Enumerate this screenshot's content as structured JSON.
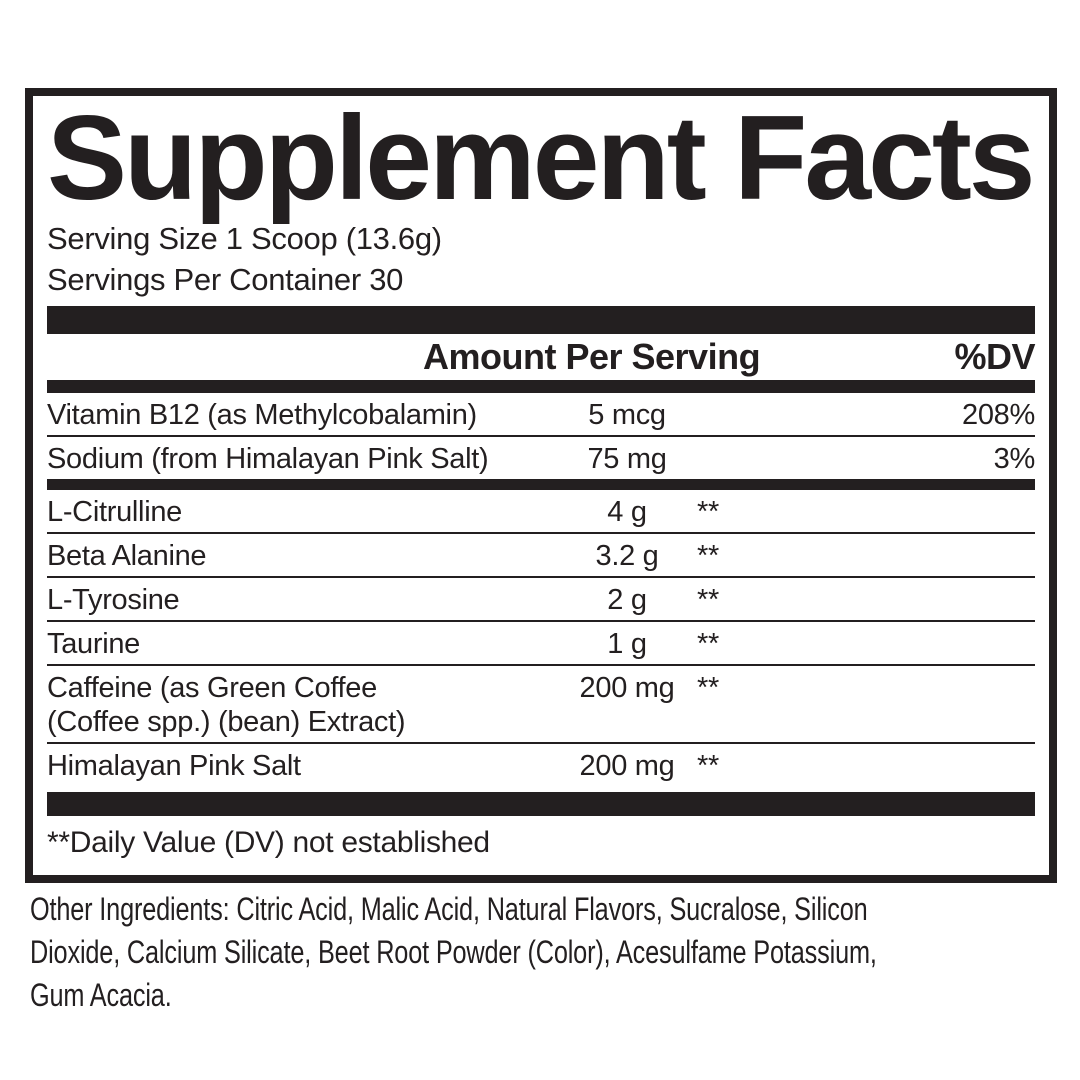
{
  "panel": {
    "title": "Supplement Facts",
    "serving_size": "Serving Size 1 Scoop (13.6g)",
    "servings_per_container": "Servings Per Container 30",
    "column_headers": {
      "amount": "Amount Per Serving",
      "dv": "%DV"
    },
    "daily_value_rows": [
      {
        "name": "Vitamin B12 (as Methylcobalamin)",
        "amount": "5 mcg",
        "asterisks": "",
        "dv": "208%"
      },
      {
        "name": "Sodium (from Himalayan Pink Salt)",
        "amount": "75 mg",
        "asterisks": "",
        "dv": "3%"
      }
    ],
    "blend_rows": [
      {
        "name": "L-Citrulline",
        "amount": "4 g",
        "asterisks": "**",
        "dv": ""
      },
      {
        "name": "Beta Alanine",
        "amount": "3.2 g",
        "asterisks": "**",
        "dv": ""
      },
      {
        "name": "L-Tyrosine",
        "amount": "2 g",
        "asterisks": "**",
        "dv": ""
      },
      {
        "name": "Taurine",
        "amount": "1 g",
        "asterisks": "**",
        "dv": ""
      },
      {
        "name": "Caffeine (as Green Coffee\n(Coffee spp.) (bean) Extract)",
        "amount": "200 mg",
        "asterisks": "**",
        "dv": ""
      },
      {
        "name": "Himalayan Pink Salt",
        "amount": "200 mg",
        "asterisks": "**",
        "dv": ""
      }
    ],
    "footnote": "**Daily Value (DV) not established"
  },
  "other_ingredients": "Other Ingredients: Citric Acid, Malic Acid, Natural Flavors, Sucralose, Silicon\nDioxide, Calcium Silicate, Beet Root Powder (Color), Acesulfame Potassium,\nGum Acacia.",
  "colors": {
    "ink": "#231f20",
    "background": "#ffffff"
  }
}
